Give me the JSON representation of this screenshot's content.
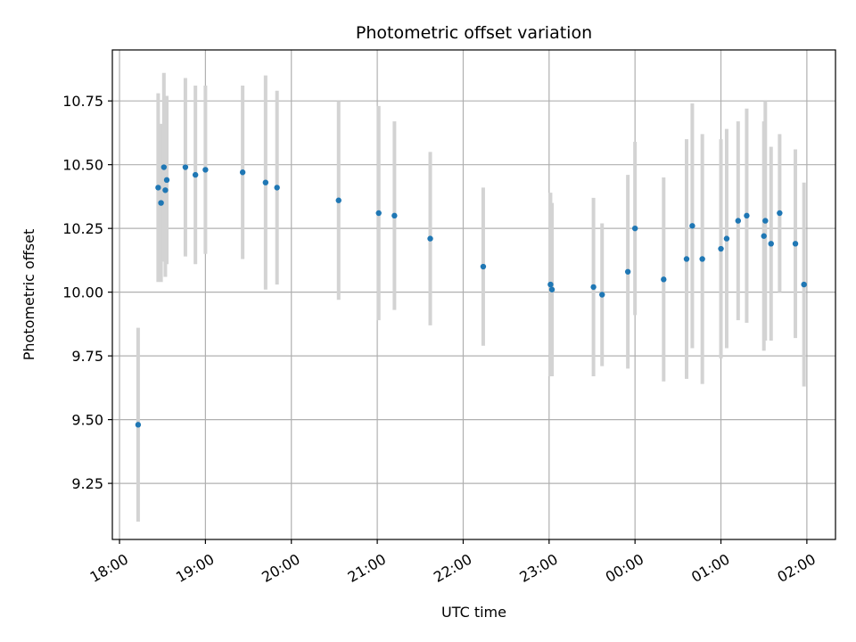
{
  "chart_data": {
    "type": "scatter",
    "title": "Photometric offset variation",
    "xlabel": "UTC time",
    "ylabel": "Photometric offset",
    "x_axis_kind": "time",
    "xlim": [
      "17:55",
      "02:20"
    ],
    "ylim": [
      9.03,
      10.95
    ],
    "grid": true,
    "x_ticks": [
      "18:00",
      "19:00",
      "20:00",
      "21:00",
      "22:00",
      "23:00",
      "00:00",
      "01:00",
      "02:00"
    ],
    "y_ticks": [
      9.25,
      9.5,
      9.75,
      10.0,
      10.25,
      10.5,
      10.75
    ],
    "colors": {
      "point": "#1f77b4",
      "errorbar": "#d3d3d3",
      "grid": "#b0b0b0",
      "axis": "#000000"
    },
    "series": [
      {
        "points": [
          {
            "x": "18:13",
            "y": 9.48,
            "yerr": 0.38
          },
          {
            "x": "18:27",
            "y": 10.41,
            "yerr": 0.37
          },
          {
            "x": "18:29",
            "y": 10.35,
            "yerr": 0.31
          },
          {
            "x": "18:31",
            "y": 10.49,
            "yerr": 0.37
          },
          {
            "x": "18:32",
            "y": 10.4,
            "yerr": 0.34
          },
          {
            "x": "18:33",
            "y": 10.44,
            "yerr": 0.33
          },
          {
            "x": "18:46",
            "y": 10.49,
            "yerr": 0.35
          },
          {
            "x": "18:53",
            "y": 10.46,
            "yerr": 0.35
          },
          {
            "x": "19:00",
            "y": 10.48,
            "yerr": 0.33
          },
          {
            "x": "19:26",
            "y": 10.47,
            "yerr": 0.34
          },
          {
            "x": "19:42",
            "y": 10.43,
            "yerr": 0.42
          },
          {
            "x": "19:50",
            "y": 10.41,
            "yerr": 0.38
          },
          {
            "x": "20:33",
            "y": 10.36,
            "yerr": 0.39
          },
          {
            "x": "21:01",
            "y": 10.31,
            "yerr": 0.42
          },
          {
            "x": "21:12",
            "y": 10.3,
            "yerr": 0.37
          },
          {
            "x": "21:37",
            "y": 10.21,
            "yerr": 0.34
          },
          {
            "x": "22:14",
            "y": 10.1,
            "yerr": 0.31
          },
          {
            "x": "23:01",
            "y": 10.03,
            "yerr": 0.36
          },
          {
            "x": "23:02",
            "y": 10.01,
            "yerr": 0.34
          },
          {
            "x": "23:31",
            "y": 10.02,
            "yerr": 0.35
          },
          {
            "x": "23:37",
            "y": 9.99,
            "yerr": 0.28
          },
          {
            "x": "23:55",
            "y": 10.08,
            "yerr": 0.38
          },
          {
            "x": "00:00",
            "y": 10.25,
            "yerr": 0.34
          },
          {
            "x": "00:20",
            "y": 10.05,
            "yerr": 0.4
          },
          {
            "x": "00:36",
            "y": 10.13,
            "yerr": 0.47
          },
          {
            "x": "00:40",
            "y": 10.26,
            "yerr": 0.48
          },
          {
            "x": "00:47",
            "y": 10.13,
            "yerr": 0.49
          },
          {
            "x": "01:00",
            "y": 10.17,
            "yerr": 0.43
          },
          {
            "x": "01:04",
            "y": 10.21,
            "yerr": 0.43
          },
          {
            "x": "01:12",
            "y": 10.28,
            "yerr": 0.39
          },
          {
            "x": "01:18",
            "y": 10.3,
            "yerr": 0.42
          },
          {
            "x": "01:30",
            "y": 10.22,
            "yerr": 0.45
          },
          {
            "x": "01:31",
            "y": 10.28,
            "yerr": 0.47
          },
          {
            "x": "01:35",
            "y": 10.19,
            "yerr": 0.38
          },
          {
            "x": "01:41",
            "y": 10.31,
            "yerr": 0.31
          },
          {
            "x": "01:52",
            "y": 10.19,
            "yerr": 0.37
          },
          {
            "x": "01:58",
            "y": 10.03,
            "yerr": 0.4
          }
        ]
      }
    ]
  }
}
